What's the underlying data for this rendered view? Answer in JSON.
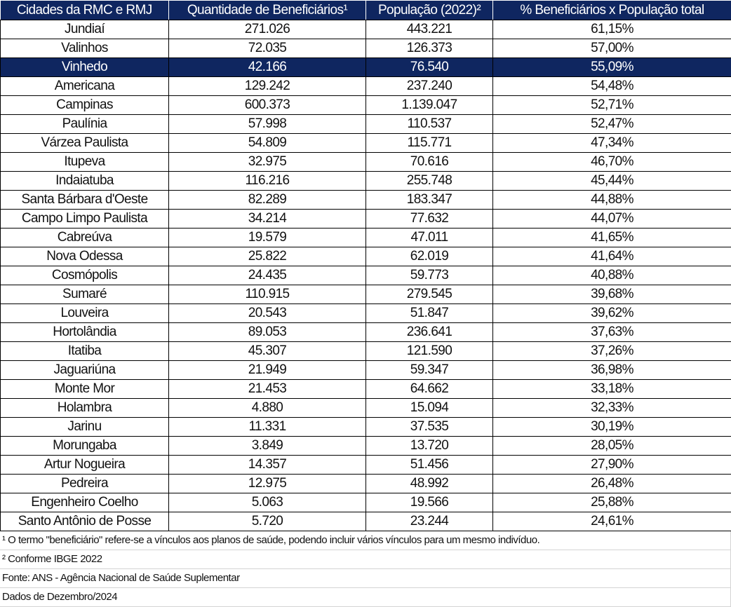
{
  "header": [
    "Cidades da RMC e RMJ",
    "Quantidade de Beneficiários¹",
    "População (2022)²",
    "% Beneficiários x População total"
  ],
  "highlight_color": "#0f2660",
  "rows": [
    [
      "Jundiaí",
      "271.026",
      "443.221",
      "61,15%"
    ],
    [
      "Valinhos",
      "72.035",
      "126.373",
      "57,00%"
    ],
    [
      "Vinhedo",
      "42.166",
      "76.540",
      "55,09%"
    ],
    [
      "Americana",
      "129.242",
      "237.240",
      "54,48%"
    ],
    [
      "Campinas",
      "600.373",
      "1.139.047",
      "52,71%"
    ],
    [
      "Paulínia",
      "57.998",
      "110.537",
      "52,47%"
    ],
    [
      "Várzea Paulista",
      "54.809",
      "115.771",
      "47,34%"
    ],
    [
      "Itupeva",
      "32.975",
      "70.616",
      "46,70%"
    ],
    [
      "Indaiatuba",
      "116.216",
      "255.748",
      "45,44%"
    ],
    [
      "Santa Bárbara d'Oeste",
      "82.289",
      "183.347",
      "44,88%"
    ],
    [
      "Campo Limpo Paulista",
      "34.214",
      "77.632",
      "44,07%"
    ],
    [
      "Cabreúva",
      "19.579",
      "47.011",
      "41,65%"
    ],
    [
      "Nova Odessa",
      "25.822",
      "62.019",
      "41,64%"
    ],
    [
      "Cosmópolis",
      "24.435",
      "59.773",
      "40,88%"
    ],
    [
      "Sumaré",
      "110.915",
      "279.545",
      "39,68%"
    ],
    [
      "Louveira",
      "20.543",
      "51.847",
      "39,62%"
    ],
    [
      "Hortolândia",
      "89.053",
      "236.641",
      "37,63%"
    ],
    [
      "Itatiba",
      "45.307",
      "121.590",
      "37,26%"
    ],
    [
      "Jaguariúna",
      "21.949",
      "59.347",
      "36,98%"
    ],
    [
      "Monte Mor",
      "21.453",
      "64.662",
      "33,18%"
    ],
    [
      "Holambra",
      "4.880",
      "15.094",
      "32,33%"
    ],
    [
      "Jarinu",
      "11.331",
      "37.535",
      "30,19%"
    ],
    [
      "Morungaba",
      "3.849",
      "13.720",
      "28,05%"
    ],
    [
      "Artur Nogueira",
      "14.357",
      "51.456",
      "27,90%"
    ],
    [
      "Pedreira",
      "12.975",
      "48.992",
      "26,48%"
    ],
    [
      "Engenheiro Coelho",
      "5.063",
      "19.566",
      "25,88%"
    ],
    [
      "Santo Antônio de Posse",
      "5.720",
      "23.244",
      "24,61%"
    ]
  ],
  "highlight_row": "Vinhedo",
  "notes": [
    "¹ O termo \"beneficiário\" refere-se a vínculos aos planos de saúde, podendo incluir vários vínculos para um mesmo indivíduo.",
    "² Conforme IBGE 2022",
    "Fonte: ANS - Agência Nacional de Saúde Suplementar",
    "Dados de Dezembro/2024"
  ]
}
